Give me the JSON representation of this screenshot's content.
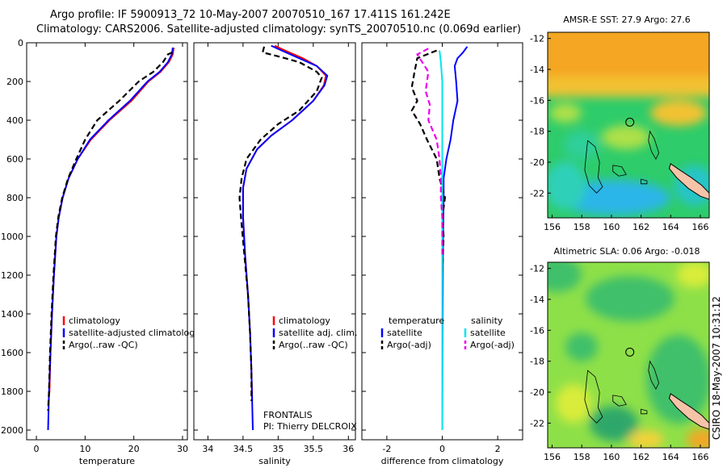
{
  "header": {
    "title_line1": "Argo profile: IF 5900913_72 10-May-2007 20070510_167 17.411S 161.242E",
    "title_line2": "Climatology: CARS2006. Satellite-adjusted climatology: synTS_20070510.nc (0.069d earlier)"
  },
  "stamp": "CSIRO 18-May-2007 10:31:12",
  "colors": {
    "climatology": "#ff0000",
    "satellite": "#0000ff",
    "argo": "#000000",
    "salinity_sat": "#00e5ee",
    "salinity_argo": "#ee00ee"
  },
  "chart_data": [
    {
      "type": "line",
      "xlabel": "temperature",
      "ylabel": "",
      "xlim": [
        -2,
        31
      ],
      "ylim": [
        2050,
        0
      ],
      "xticks": [
        0,
        10,
        20,
        30
      ],
      "yticks": [
        0,
        200,
        400,
        600,
        800,
        1000,
        1200,
        1400,
        1600,
        1800,
        2000
      ],
      "legend": [
        "climatology",
        "satellite-adjusted climatolog",
        "Argo(..raw -QC)"
      ],
      "legend_position": "lower-left",
      "series": [
        {
          "name": "climatology",
          "style": "solid",
          "color": "#ff0000",
          "points": [
            [
              28.2,
              25
            ],
            [
              28.0,
              60
            ],
            [
              27.2,
              100
            ],
            [
              25.5,
              150
            ],
            [
              23.0,
              200
            ],
            [
              19.5,
              300
            ],
            [
              15.0,
              400
            ],
            [
              11.2,
              500
            ],
            [
              8.5,
              600
            ],
            [
              6.6,
              700
            ],
            [
              5.4,
              800
            ],
            [
              4.6,
              900
            ],
            [
              4.1,
              1000
            ],
            [
              3.6,
              1200
            ],
            [
              3.2,
              1400
            ],
            [
              2.9,
              1600
            ],
            [
              2.7,
              1800
            ],
            [
              2.5,
              1850
            ]
          ]
        },
        {
          "name": "satellite-adjusted climatolog",
          "style": "solid",
          "color": "#0000ff",
          "points": [
            [
              28.0,
              25
            ],
            [
              27.8,
              60
            ],
            [
              27.0,
              100
            ],
            [
              25.3,
              150
            ],
            [
              22.8,
              200
            ],
            [
              19.2,
              300
            ],
            [
              14.8,
              400
            ],
            [
              11.0,
              500
            ],
            [
              8.5,
              600
            ],
            [
              6.6,
              700
            ],
            [
              5.4,
              800
            ],
            [
              4.6,
              900
            ],
            [
              4.1,
              1000
            ],
            [
              3.6,
              1200
            ],
            [
              3.2,
              1400
            ],
            [
              2.9,
              1600
            ],
            [
              2.6,
              1800
            ],
            [
              2.4,
              2000
            ]
          ]
        },
        {
          "name": "Argo(..raw -QC)",
          "style": "dashed",
          "color": "#000000",
          "points": [
            [
              27.9,
              50
            ],
            [
              27.0,
              60
            ],
            [
              26.0,
              100
            ],
            [
              24.0,
              150
            ],
            [
              21.0,
              200
            ],
            [
              17.0,
              300
            ],
            [
              12.5,
              400
            ],
            [
              10.0,
              500
            ],
            [
              8.2,
              600
            ],
            [
              6.5,
              700
            ],
            [
              5.3,
              800
            ],
            [
              4.5,
              900
            ],
            [
              4.0,
              1000
            ],
            [
              3.5,
              1200
            ],
            [
              3.1,
              1400
            ],
            [
              2.8,
              1600
            ],
            [
              2.6,
              1800
            ],
            [
              2.4,
              1900
            ]
          ]
        }
      ]
    },
    {
      "type": "line",
      "xlabel": "salinity",
      "ylabel": "",
      "xlim": [
        33.8,
        36.1
      ],
      "ylim": [
        2050,
        0
      ],
      "xticks": [
        34,
        34.5,
        35,
        35.5,
        36
      ],
      "legend": [
        "climatology",
        "satellite adj. clim.",
        "Argo(..raw -QC)"
      ],
      "legend_position": "lower-right",
      "annotation": [
        "FRONTALIS",
        "PI: Thierry DELCROIX"
      ],
      "series": [
        {
          "name": "climatology",
          "style": "solid",
          "color": "#ff0000",
          "points": [
            [
              34.95,
              15
            ],
            [
              35.1,
              40
            ],
            [
              35.35,
              80
            ],
            [
              35.55,
              120
            ],
            [
              35.68,
              170
            ],
            [
              35.65,
              220
            ],
            [
              35.5,
              300
            ],
            [
              35.2,
              400
            ],
            [
              34.9,
              480
            ],
            [
              34.7,
              550
            ],
            [
              34.55,
              650
            ],
            [
              34.5,
              750
            ],
            [
              34.5,
              900
            ],
            [
              34.53,
              1100
            ],
            [
              34.57,
              1300
            ],
            [
              34.6,
              1500
            ],
            [
              34.62,
              1700
            ],
            [
              34.63,
              1850
            ]
          ]
        },
        {
          "name": "satellite adj. clim.",
          "style": "solid",
          "color": "#0000ff",
          "points": [
            [
              34.9,
              15
            ],
            [
              35.05,
              40
            ],
            [
              35.3,
              80
            ],
            [
              35.55,
              120
            ],
            [
              35.7,
              170
            ],
            [
              35.66,
              220
            ],
            [
              35.5,
              300
            ],
            [
              35.2,
              400
            ],
            [
              34.9,
              480
            ],
            [
              34.7,
              550
            ],
            [
              34.55,
              650
            ],
            [
              34.5,
              750
            ],
            [
              34.5,
              900
            ],
            [
              34.53,
              1100
            ],
            [
              34.57,
              1300
            ],
            [
              34.6,
              1500
            ],
            [
              34.62,
              1700
            ],
            [
              34.64,
              2000
            ]
          ]
        },
        {
          "name": "Argo(..raw -QC)",
          "style": "dashed",
          "color": "#000000",
          "points": [
            [
              34.8,
              20
            ],
            [
              34.78,
              50
            ],
            [
              35.0,
              70
            ],
            [
              35.3,
              100
            ],
            [
              35.55,
              150
            ],
            [
              35.62,
              180
            ],
            [
              35.55,
              250
            ],
            [
              35.3,
              350
            ],
            [
              35.0,
              420
            ],
            [
              34.75,
              500
            ],
            [
              34.55,
              600
            ],
            [
              34.48,
              700
            ],
            [
              34.45,
              800
            ],
            [
              34.47,
              900
            ],
            [
              34.52,
              1100
            ],
            [
              34.57,
              1300
            ],
            [
              34.6,
              1500
            ],
            [
              34.62,
              1700
            ],
            [
              34.62,
              1850
            ]
          ]
        }
      ]
    },
    {
      "type": "line",
      "xlabel": "difference from climatology",
      "ylabel": "",
      "xlim": [
        -2.9,
        2.9
      ],
      "ylim": [
        2050,
        0
      ],
      "xticks": [
        -2,
        0,
        2
      ],
      "legend": [
        "temperature",
        "satellite",
        "Argo(-adj)",
        "salinity",
        "satellite",
        "Argo(-adj)"
      ],
      "legend_position": "lower",
      "series": [
        {
          "name": "temperature satellite",
          "style": "solid",
          "color": "#0000ff",
          "points": [
            [
              0.9,
              20
            ],
            [
              0.75,
              50
            ],
            [
              0.55,
              80
            ],
            [
              0.45,
              120
            ],
            [
              0.5,
              200
            ],
            [
              0.55,
              300
            ],
            [
              0.4,
              400
            ],
            [
              0.3,
              500
            ],
            [
              0.15,
              600
            ],
            [
              0.05,
              700
            ],
            [
              0.05,
              800
            ],
            [
              0.03,
              1000
            ],
            [
              0.02,
              1200
            ],
            [
              0.01,
              1500
            ],
            [
              0.0,
              2000
            ]
          ]
        },
        {
          "name": "temperature Argo(-adj)",
          "style": "dashed",
          "color": "#000000",
          "points": [
            [
              -0.2,
              40
            ],
            [
              -0.9,
              80
            ],
            [
              -1.0,
              150
            ],
            [
              -1.1,
              230
            ],
            [
              -0.9,
              300
            ],
            [
              -1.1,
              350
            ],
            [
              -0.8,
              420
            ],
            [
              -0.55,
              500
            ],
            [
              -0.2,
              600
            ],
            [
              -0.1,
              700
            ],
            [
              0.1,
              800
            ],
            [
              0.0,
              900
            ],
            [
              0.05,
              1000
            ],
            [
              0.02,
              1100
            ],
            [
              0.0,
              1200
            ]
          ]
        },
        {
          "name": "salinity satellite",
          "style": "solid",
          "color": "#00e5ee",
          "points": [
            [
              -0.1,
              40
            ],
            [
              -0.05,
              100
            ],
            [
              0.0,
              200
            ],
            [
              0.0,
              400
            ],
            [
              0.0,
              600
            ],
            [
              0.0,
              800
            ],
            [
              0.0,
              1000
            ],
            [
              0.0,
              1500
            ],
            [
              0.0,
              2000
            ]
          ]
        },
        {
          "name": "salinity Argo(-adj)",
          "style": "dashed",
          "color": "#ee00ee",
          "points": [
            [
              -0.5,
              30
            ],
            [
              -0.9,
              60
            ],
            [
              -0.5,
              150
            ],
            [
              -0.6,
              250
            ],
            [
              -0.45,
              320
            ],
            [
              -0.5,
              400
            ],
            [
              -0.2,
              500
            ],
            [
              -0.1,
              600
            ],
            [
              -0.05,
              700
            ],
            [
              -0.05,
              800
            ],
            [
              0.0,
              900
            ],
            [
              0.0,
              1100
            ]
          ]
        }
      ]
    },
    {
      "type": "heatmap",
      "title": "AMSR-E SST: 27.9 Argo: 27.6",
      "xlim": [
        155.7,
        166.6
      ],
      "ylim": [
        -23.6,
        -11.6
      ],
      "xticks": [
        156,
        158,
        160,
        162,
        164,
        166
      ],
      "yticks": [
        -12,
        -14,
        -16,
        -18,
        -20,
        -22
      ],
      "marker": {
        "lon": 161.242,
        "lat": -17.411
      }
    },
    {
      "type": "heatmap",
      "title": "Altimetric SLA: 0.06 Argo: -0.018",
      "xlim": [
        155.7,
        166.6
      ],
      "ylim": [
        -23.6,
        -11.6
      ],
      "xticks": [
        156,
        158,
        160,
        162,
        164,
        166
      ],
      "yticks": [
        -12,
        -14,
        -16,
        -18,
        -20,
        -22
      ],
      "marker": {
        "lon": 161.242,
        "lat": -17.411
      }
    }
  ]
}
